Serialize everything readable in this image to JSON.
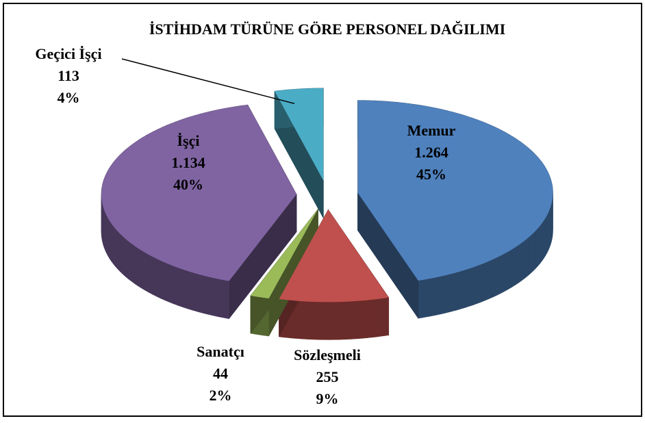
{
  "chart_data": {
    "type": "pie3d",
    "title": "İSTİHDAM TÜRÜNE GÖRE PERSONEL DAĞILIMI",
    "categories": [
      "Memur",
      "Sözleşmeli",
      "Sanatçı",
      "İşçi",
      "Geçici İşçi"
    ],
    "values": [
      1264,
      255,
      44,
      1134,
      113
    ],
    "value_labels": [
      "1.264",
      "255",
      "44",
      "1.134",
      "113"
    ],
    "percent_labels": [
      "45%",
      "9%",
      "2%",
      "40%",
      "4%"
    ],
    "colors": [
      "#4f81bd",
      "#c0504d",
      "#9bbb59",
      "#8064a2",
      "#4bacc6"
    ]
  }
}
